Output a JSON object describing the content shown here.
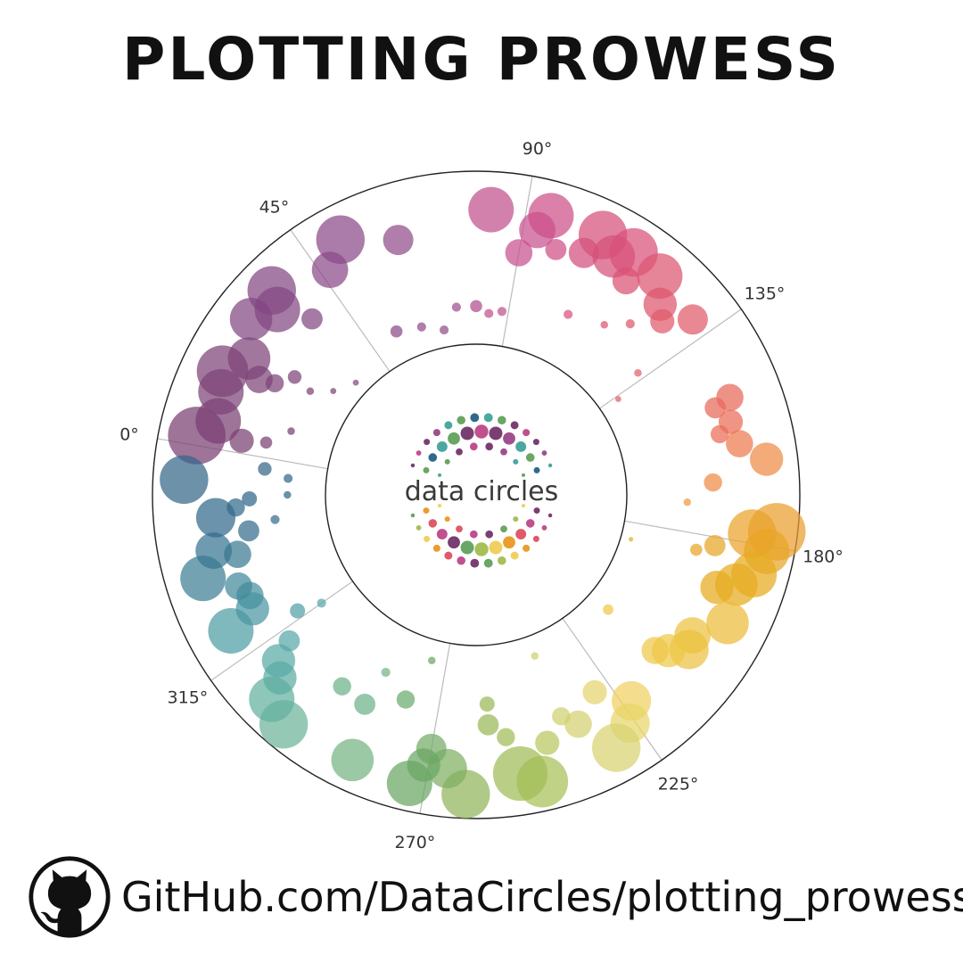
{
  "title": "PLOTTING PROWESS",
  "footer": {
    "url": "GitHub.com/DataCircles/plotting_prowess",
    "icon": "github-octocat-icon"
  },
  "logo": {
    "text": "data circles"
  },
  "chart_data": {
    "type": "scatter",
    "projection": "polar",
    "theta_direction": "clockwise",
    "theta_zero_location": "left",
    "angle_ticks": [
      {
        "deg": 0,
        "label": "0°"
      },
      {
        "deg": 45,
        "label": "45°"
      },
      {
        "deg": 90,
        "label": "90°"
      },
      {
        "deg": 135,
        "label": "135°"
      },
      {
        "deg": 180,
        "label": "180°"
      },
      {
        "deg": 225,
        "label": "225°"
      },
      {
        "deg": 270,
        "label": "270°"
      },
      {
        "deg": 315,
        "label": "315°"
      }
    ],
    "grid": true,
    "colormap": "hue by angle (purple → magenta → red → orange → yellow → green → teal → blue)",
    "points": [
      {
        "theta": 2,
        "r": 0.78,
        "size": 38,
        "color": "#7a3f72"
      },
      {
        "theta": 6,
        "r": 0.68,
        "size": 30,
        "color": "#7a3f72"
      },
      {
        "theta": 3,
        "r": 0.52,
        "size": 16,
        "color": "#7a3f72"
      },
      {
        "theta": 4,
        "r": 0.38,
        "size": 8,
        "color": "#7a3f72"
      },
      {
        "theta": 9,
        "r": 0.26,
        "size": 5,
        "color": "#7a3f72"
      },
      {
        "theta": 12,
        "r": 0.72,
        "size": 30,
        "color": "#7d4377"
      },
      {
        "theta": 16,
        "r": 0.76,
        "size": 34,
        "color": "#7d4377"
      },
      {
        "theta": 18,
        "r": 0.55,
        "size": 18,
        "color": "#7d4377"
      },
      {
        "theta": 21,
        "r": 0.66,
        "size": 28,
        "color": "#7d4377"
      },
      {
        "theta": 19,
        "r": 0.46,
        "size": 12,
        "color": "#7d4377"
      },
      {
        "theta": 23,
        "r": 0.38,
        "size": 9,
        "color": "#7d4377"
      },
      {
        "theta": 22,
        "r": 0.26,
        "size": 5,
        "color": "#7d4377"
      },
      {
        "theta": 26,
        "r": 0.15,
        "size": 4,
        "color": "#7d4377"
      },
      {
        "theta": 28,
        "r": 0.78,
        "size": 28,
        "color": "#824782"
      },
      {
        "theta": 33,
        "r": 0.7,
        "size": 30,
        "color": "#824782"
      },
      {
        "theta": 35,
        "r": 0.8,
        "size": 32,
        "color": "#824782"
      },
      {
        "theta": 37,
        "r": 0.52,
        "size": 14,
        "color": "#824782"
      },
      {
        "theta": 33,
        "r": 0.08,
        "size": 4,
        "color": "#824782"
      },
      {
        "theta": 47,
        "r": 0.68,
        "size": 24,
        "color": "#8a4a88"
      },
      {
        "theta": 52,
        "r": 0.8,
        "size": 32,
        "color": "#8a4a88"
      },
      {
        "theta": 54,
        "r": 0.18,
        "size": 8,
        "color": "#8a4a88"
      },
      {
        "theta": 63,
        "r": 0.67,
        "size": 20,
        "color": "#904c8b"
      },
      {
        "theta": 62,
        "r": 0.15,
        "size": 6,
        "color": "#904c8b"
      },
      {
        "theta": 69,
        "r": 0.1,
        "size": 6,
        "color": "#904c8b"
      },
      {
        "theta": 74,
        "r": 0.22,
        "size": 6,
        "color": "#a04e8e"
      },
      {
        "theta": 80,
        "r": 0.22,
        "size": 8,
        "color": "#b04e8e"
      },
      {
        "theta": 83,
        "r": 0.78,
        "size": 30,
        "color": "#c0508e"
      },
      {
        "theta": 84,
        "r": 0.18,
        "size": 6,
        "color": "#c0508e"
      },
      {
        "theta": 88,
        "r": 0.2,
        "size": 6,
        "color": "#c0508e"
      },
      {
        "theta": 90,
        "r": 0.55,
        "size": 18,
        "color": "#c85090"
      },
      {
        "theta": 93,
        "r": 0.7,
        "size": 24,
        "color": "#c85090"
      },
      {
        "theta": 95,
        "r": 0.8,
        "size": 30,
        "color": "#cc4f88"
      },
      {
        "theta": 98,
        "r": 0.62,
        "size": 14,
        "color": "#d04f85"
      },
      {
        "theta": 104,
        "r": 0.66,
        "size": 20,
        "color": "#d24f80"
      },
      {
        "theta": 106,
        "r": 0.8,
        "size": 32,
        "color": "#d6507a"
      },
      {
        "theta": 110,
        "r": 0.72,
        "size": 28,
        "color": "#d6507a"
      },
      {
        "theta": 113,
        "r": 0.8,
        "size": 32,
        "color": "#d8517a"
      },
      {
        "theta": 115,
        "r": 0.64,
        "size": 18,
        "color": "#da5275"
      },
      {
        "theta": 120,
        "r": 0.78,
        "size": 30,
        "color": "#dc5470"
      },
      {
        "theta": 124,
        "r": 0.66,
        "size": 22,
        "color": "#de556e"
      },
      {
        "theta": 127,
        "r": 0.6,
        "size": 16,
        "color": "#e05a6a"
      },
      {
        "theta": 131,
        "r": 0.74,
        "size": 20,
        "color": "#e05a6a"
      },
      {
        "theta": 107,
        "r": 0.3,
        "size": 6,
        "color": "#d8517a"
      },
      {
        "theta": 117,
        "r": 0.36,
        "size": 5,
        "color": "#dc5470"
      },
      {
        "theta": 122,
        "r": 0.46,
        "size": 6,
        "color": "#de556e"
      },
      {
        "theta": 133,
        "r": 0.3,
        "size": 5,
        "color": "#e06068"
      },
      {
        "theta": 136,
        "r": 0.12,
        "size": 4,
        "color": "#e06068"
      },
      {
        "theta": 149,
        "r": 0.7,
        "size": 18,
        "color": "#e8685a"
      },
      {
        "theta": 150,
        "r": 0.6,
        "size": 14,
        "color": "#e8685a"
      },
      {
        "theta": 154,
        "r": 0.66,
        "size": 16,
        "color": "#ea6c56"
      },
      {
        "theta": 156,
        "r": 0.58,
        "size": 12,
        "color": "#ea6c56"
      },
      {
        "theta": 159,
        "r": 0.68,
        "size": 18,
        "color": "#ed7a4f"
      },
      {
        "theta": 163,
        "r": 0.82,
        "size": 22,
        "color": "#ee8a45"
      },
      {
        "theta": 167,
        "r": 0.5,
        "size": 12,
        "color": "#ee8a45"
      },
      {
        "theta": 172,
        "r": 0.35,
        "size": 5,
        "color": "#ee9a40"
      },
      {
        "theta": 177,
        "r": 0.88,
        "size": 38,
        "color": "#ea9e2e"
      },
      {
        "theta": 178,
        "r": 0.74,
        "size": 32,
        "color": "#eaa22a"
      },
      {
        "theta": 181,
        "r": 0.84,
        "size": 30,
        "color": "#e8a526"
      },
      {
        "theta": 182,
        "r": 0.54,
        "size": 14,
        "color": "#e8a526"
      },
      {
        "theta": 184,
        "r": 0.44,
        "size": 8,
        "color": "#e8a526"
      },
      {
        "theta": 186,
        "r": 0.8,
        "size": 30,
        "color": "#e6ab1e"
      },
      {
        "theta": 189,
        "r": 0.72,
        "size": 28,
        "color": "#e6ab1e"
      },
      {
        "theta": 191,
        "r": 0.62,
        "size": 22,
        "color": "#e6ab1e"
      },
      {
        "theta": 186,
        "r": 0.06,
        "size": 3,
        "color": "#e6ab1e"
      },
      {
        "theta": 197,
        "r": 0.76,
        "size": 28,
        "color": "#ebbb38"
      },
      {
        "theta": 203,
        "r": 0.62,
        "size": 24,
        "color": "#ecc040"
      },
      {
        "theta": 206,
        "r": 0.65,
        "size": 26,
        "color": "#ecc040"
      },
      {
        "theta": 209,
        "r": 0.56,
        "size": 22,
        "color": "#eec848"
      },
      {
        "theta": 211,
        "r": 0.5,
        "size": 18,
        "color": "#eec848"
      },
      {
        "theta": 211,
        "r": 0.14,
        "size": 7,
        "color": "#eec848"
      },
      {
        "theta": 223,
        "r": 0.62,
        "size": 26,
        "color": "#f0d060"
      },
      {
        "theta": 226,
        "r": 0.72,
        "size": 26,
        "color": "#e8d56a"
      },
      {
        "theta": 229,
        "r": 0.46,
        "size": 16,
        "color": "#e4d46e"
      },
      {
        "theta": 231,
        "r": 0.8,
        "size": 32,
        "color": "#d8d272"
      },
      {
        "theta": 236,
        "r": 0.58,
        "size": 18,
        "color": "#d4d070"
      },
      {
        "theta": 239,
        "r": 0.5,
        "size": 12,
        "color": "#cfd06e"
      },
      {
        "theta": 240,
        "r": 0.12,
        "size": 5,
        "color": "#cfd06e"
      },
      {
        "theta": 244,
        "r": 0.62,
        "size": 16,
        "color": "#b8c860"
      },
      {
        "theta": 247,
        "r": 0.83,
        "size": 34,
        "color": "#a8c058"
      },
      {
        "theta": 251,
        "r": 0.76,
        "size": 36,
        "color": "#a0bc56"
      },
      {
        "theta": 253,
        "r": 0.54,
        "size": 12,
        "color": "#a0bc56"
      },
      {
        "theta": 257,
        "r": 0.46,
        "size": 14,
        "color": "#9ab858"
      },
      {
        "theta": 257,
        "r": 0.34,
        "size": 10,
        "color": "#9ab858"
      },
      {
        "theta": 262,
        "r": 0.86,
        "size": 32,
        "color": "#90b45a"
      },
      {
        "theta": 266,
        "r": 0.72,
        "size": 26,
        "color": "#7fae62"
      },
      {
        "theta": 270,
        "r": 0.62,
        "size": 20,
        "color": "#74aa66"
      },
      {
        "theta": 271,
        "r": 0.72,
        "size": 22,
        "color": "#6aa664"
      },
      {
        "theta": 273,
        "r": 0.84,
        "size": 30,
        "color": "#6aa664"
      },
      {
        "theta": 275,
        "r": 0.12,
        "size": 5,
        "color": "#6aa664"
      },
      {
        "theta": 279,
        "r": 0.38,
        "size": 12,
        "color": "#6aac6c"
      },
      {
        "theta": 285,
        "r": 0.82,
        "size": 28,
        "color": "#74b484"
      },
      {
        "theta": 287,
        "r": 0.28,
        "size": 6,
        "color": "#74b484"
      },
      {
        "theta": 288,
        "r": 0.5,
        "size": 14,
        "color": "#6cb288"
      },
      {
        "theta": 295,
        "r": 0.48,
        "size": 12,
        "color": "#6cb288"
      },
      {
        "theta": 300,
        "r": 0.86,
        "size": 32,
        "color": "#6cb49a"
      },
      {
        "theta": 305,
        "r": 0.8,
        "size": 30,
        "color": "#62b0a0"
      },
      {
        "theta": 307,
        "r": 0.68,
        "size": 22,
        "color": "#5caca2"
      },
      {
        "theta": 310,
        "r": 0.62,
        "size": 22,
        "color": "#5aaaa6"
      },
      {
        "theta": 312,
        "r": 0.5,
        "size": 14,
        "color": "#58a8a8"
      },
      {
        "theta": 315,
        "r": 0.22,
        "size": 6,
        "color": "#58a8a8"
      },
      {
        "theta": 317,
        "r": 0.36,
        "size": 10,
        "color": "#50a0a6"
      },
      {
        "theta": 321,
        "r": 0.75,
        "size": 30,
        "color": "#4e9ca4"
      },
      {
        "theta": 323,
        "r": 0.58,
        "size": 22,
        "color": "#4a96a2"
      },
      {
        "theta": 326,
        "r": 0.56,
        "size": 18,
        "color": "#4690a0"
      },
      {
        "theta": 329,
        "r": 0.6,
        "size": 18,
        "color": "#42889a"
      },
      {
        "theta": 333,
        "r": 0.78,
        "size": 30,
        "color": "#3d8096"
      },
      {
        "theta": 336,
        "r": 0.55,
        "size": 18,
        "color": "#3a7a92"
      },
      {
        "theta": 338,
        "r": 0.68,
        "size": 24,
        "color": "#367490"
      },
      {
        "theta": 341,
        "r": 0.46,
        "size": 14,
        "color": "#346e8c"
      },
      {
        "theta": 343,
        "r": 0.3,
        "size": 6,
        "color": "#346e8c"
      },
      {
        "theta": 345,
        "r": 0.64,
        "size": 26,
        "color": "#326a8a"
      },
      {
        "theta": 347,
        "r": 0.52,
        "size": 12,
        "color": "#326a8a"
      },
      {
        "theta": 349,
        "r": 0.44,
        "size": 10,
        "color": "#30668a"
      },
      {
        "theta": 350,
        "r": 0.22,
        "size": 5,
        "color": "#30668a"
      },
      {
        "theta": 353,
        "r": 0.82,
        "size": 32,
        "color": "#336688"
      },
      {
        "theta": 355,
        "r": 0.22,
        "size": 6,
        "color": "#336688"
      },
      {
        "theta": 357,
        "r": 0.36,
        "size": 9,
        "color": "#336688"
      }
    ]
  }
}
